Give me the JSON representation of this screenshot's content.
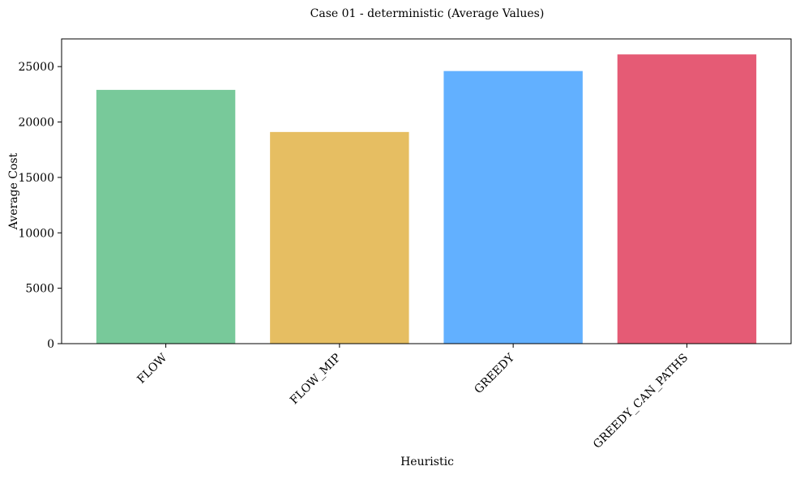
{
  "chart_data": {
    "type": "bar",
    "title": "Case 01 - deterministic (Average Values)",
    "xlabel": "Heuristic",
    "ylabel": "Average Cost",
    "categories": [
      "FLOW",
      "FLOW_MIP",
      "GREEDY",
      "GREEDY_CAN_PATHS"
    ],
    "values": [
      22900,
      19100,
      24600,
      26100
    ],
    "colors": [
      "#78c99a",
      "#e6be62",
      "#62b0ff",
      "#e55b75"
    ],
    "ylim": [
      0,
      27500
    ],
    "yticks": [
      0,
      5000,
      10000,
      15000,
      20000,
      25000
    ],
    "grid": false,
    "legend": "none"
  }
}
